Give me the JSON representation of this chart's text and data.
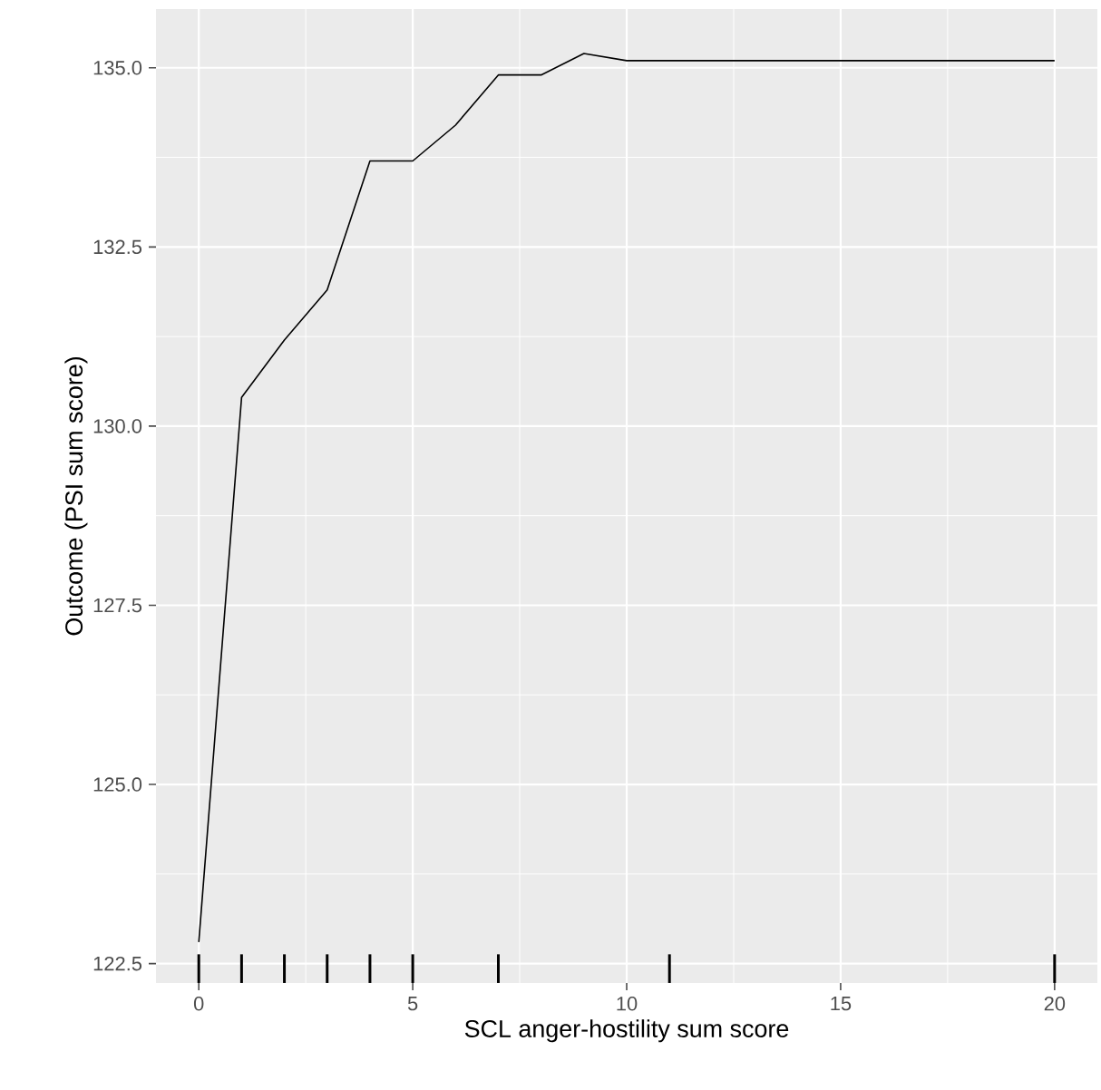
{
  "chart_data": {
    "type": "line",
    "xlabel": "SCL anger-hostility sum score",
    "ylabel": "Outcome (PSI sum score)",
    "x": [
      0,
      1,
      2,
      3,
      4,
      5,
      6,
      7,
      8,
      9,
      10,
      20
    ],
    "series": [
      {
        "color": "#000000",
        "values": [
          122.8,
          130.4,
          131.2,
          131.9,
          133.7,
          133.7,
          134.2,
          134.9,
          134.9,
          135.2,
          135.1,
          135.1
        ]
      },
      {
        "type": "bar",
        "color": "#000000",
        "x": [
          0,
          1,
          2,
          3,
          4,
          5,
          7,
          11,
          20
        ],
        "base": [
          122.23,
          122.23,
          122.23,
          122.23,
          122.23,
          122.23,
          122.23,
          122.23,
          122.23
        ],
        "values": [
          0.4,
          0.4,
          0.4,
          0.4,
          0.4,
          0.4,
          0.4,
          0.4,
          0.4
        ]
      }
    ],
    "xlim": [
      -1,
      21
    ],
    "ylim": [
      122.23,
      135.82
    ],
    "xticks": [
      0,
      5,
      10,
      15,
      20
    ],
    "yticks": [
      122.5,
      {
        "value": 125,
        "label": "125.0"
      },
      127.5,
      {
        "value": 130,
        "label": "130.0"
      },
      132.5,
      {
        "value": 135,
        "label": "135.0"
      }
    ],
    "grid": true
  }
}
